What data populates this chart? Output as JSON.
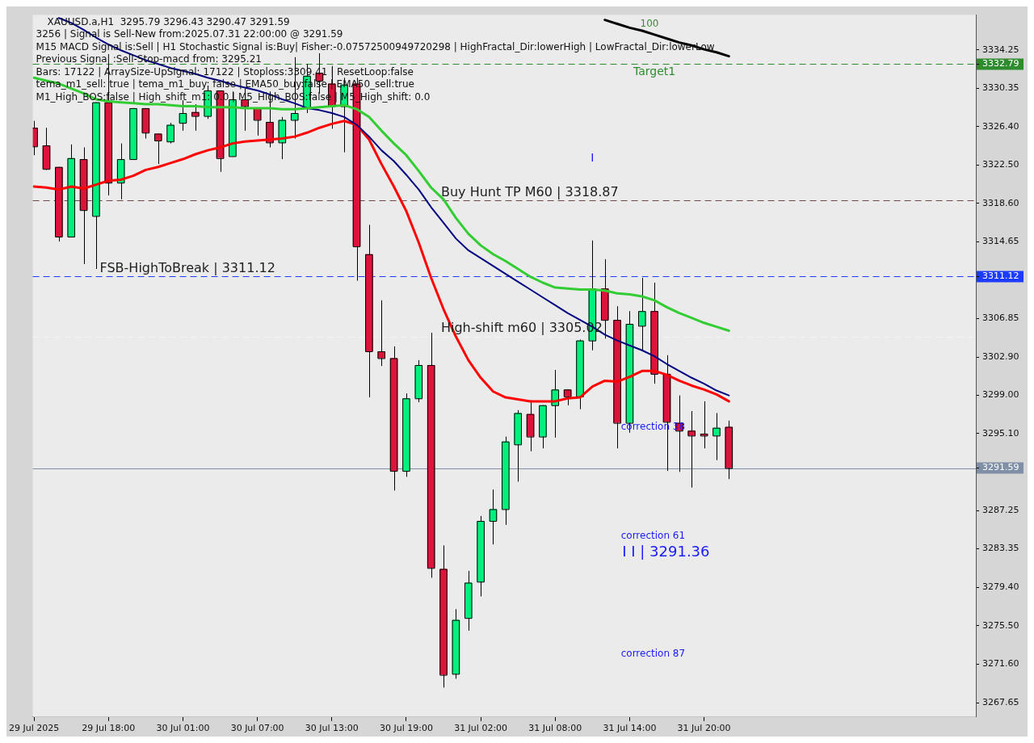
{
  "chart_data": {
    "type": "candlestick",
    "title": "XAUUSD.a,H1  3295.79 3296.43 3290.47 3291.59",
    "categories": [
      "29 Jul 2025",
      null,
      null,
      null,
      null,
      null,
      "29 Jul 18:00",
      null,
      null,
      null,
      null,
      null,
      "30 Jul 01:00",
      null,
      null,
      null,
      null,
      null,
      "30 Jul 07:00",
      null,
      null,
      null,
      null,
      null,
      "30 Jul 13:00",
      null,
      null,
      null,
      null,
      null,
      "30 Jul 19:00",
      null,
      null,
      null,
      null,
      null,
      "31 Jul 02:00",
      null,
      null,
      null,
      null,
      null,
      "31 Jul 08:00",
      null,
      null,
      null,
      null,
      null,
      "31 Jul 14:00",
      null,
      null,
      null,
      null,
      null,
      "31 Jul 20:00",
      null,
      null
    ],
    "ohlc": [
      [
        3326.3,
        3327.0,
        3323.5,
        3324.4
      ],
      [
        3324.5,
        3326.3,
        3322.0,
        3322.1
      ],
      [
        3322.3,
        3322.3,
        3314.7,
        3315.2
      ],
      [
        3315.2,
        3324.6,
        3315.2,
        3323.2
      ],
      [
        3323.1,
        3324.3,
        3312.4,
        3317.9
      ],
      [
        3317.3,
        3328.9,
        3311.9,
        3328.9
      ],
      [
        3328.9,
        3333.0,
        3319.4,
        3320.7
      ],
      [
        3320.7,
        3324.7,
        3319.0,
        3323.1
      ],
      [
        3323.1,
        3328.3,
        3323.1,
        3328.3
      ],
      [
        3328.3,
        3328.3,
        3325.2,
        3325.8
      ],
      [
        3325.7,
        3325.7,
        3322.6,
        3325.0
      ],
      [
        3324.9,
        3326.8,
        3324.7,
        3326.6
      ],
      [
        3326.8,
        3329.1,
        3326.0,
        3327.8
      ],
      [
        3327.9,
        3328.7,
        3326.0,
        3327.5
      ],
      [
        3327.5,
        3330.6,
        3327.2,
        3330.1
      ],
      [
        3330.1,
        3330.1,
        3321.8,
        3323.2
      ],
      [
        3323.4,
        3330.0,
        3323.4,
        3329.2
      ],
      [
        3329.2,
        3330.3,
        3326.0,
        3328.5
      ],
      [
        3328.3,
        3328.3,
        3325.5,
        3327.1
      ],
      [
        3326.9,
        3330.0,
        3324.3,
        3324.8
      ],
      [
        3324.8,
        3327.4,
        3323.1,
        3327.1
      ],
      [
        3327.1,
        3333.5,
        3325.2,
        3327.8
      ],
      [
        3328.3,
        3332.8,
        3327.8,
        3331.6
      ],
      [
        3331.9,
        3333.9,
        3329.8,
        3331.1
      ],
      [
        3330.8,
        3332.6,
        3326.2,
        3328.5
      ],
      [
        3328.5,
        3331.4,
        3323.8,
        3330.7
      ],
      [
        3330.8,
        3331.4,
        3310.7,
        3314.2
      ],
      [
        3313.4,
        3316.4,
        3298.8,
        3303.5
      ],
      [
        3303.5,
        3308.7,
        3302.0,
        3302.8
      ],
      [
        3302.8,
        3304.0,
        3289.3,
        3291.3
      ],
      [
        3291.3,
        3299.2,
        3290.7,
        3298.7
      ],
      [
        3298.7,
        3302.6,
        3298.3,
        3302.1
      ],
      [
        3302.1,
        3305.4,
        3280.4,
        3281.4
      ],
      [
        3281.3,
        3283.7,
        3269.2,
        3270.5
      ],
      [
        3270.6,
        3277.2,
        3270.1,
        3276.1
      ],
      [
        3276.3,
        3281.1,
        3275.0,
        3279.9
      ],
      [
        3280.0,
        3286.7,
        3278.5,
        3286.2
      ],
      [
        3286.2,
        3289.4,
        3283.8,
        3287.4
      ],
      [
        3287.4,
        3294.8,
        3285.8,
        3294.3
      ],
      [
        3294.0,
        3297.5,
        3290.2,
        3297.2
      ],
      [
        3297.1,
        3298.5,
        3293.3,
        3294.8
      ],
      [
        3294.8,
        3298.0,
        3293.6,
        3298.0
      ],
      [
        3298.0,
        3301.6,
        3294.7,
        3299.6
      ],
      [
        3299.6,
        3299.6,
        3298.0,
        3298.9
      ],
      [
        3298.9,
        3304.7,
        3297.6,
        3304.6
      ],
      [
        3304.6,
        3314.8,
        3303.6,
        3309.9
      ],
      [
        3309.9,
        3312.9,
        3304.8,
        3306.7
      ],
      [
        3306.7,
        3308.1,
        3293.6,
        3296.2
      ],
      [
        3296.2,
        3307.6,
        3295.2,
        3306.3
      ],
      [
        3306.1,
        3311.0,
        3303.5,
        3307.6
      ],
      [
        3307.6,
        3310.5,
        3300.2,
        3301.2
      ],
      [
        3301.2,
        3303.1,
        3291.3,
        3296.3
      ],
      [
        3296.2,
        3299.0,
        3291.2,
        3295.4
      ],
      [
        3295.4,
        3297.4,
        3289.6,
        3294.9
      ],
      [
        3295.1,
        3298.4,
        3293.6,
        3294.9
      ],
      [
        3294.9,
        3297.2,
        3292.4,
        3295.7
      ],
      [
        3295.79,
        3296.43,
        3290.47,
        3291.59
      ]
    ],
    "colors": [
      "#dc143c",
      "#dc143c",
      "#dc143c",
      "#00f07e",
      "#dc143c",
      "#00f07e",
      "#dc143c",
      "#00f07e",
      "#00f07e",
      "#dc143c",
      "#dc143c",
      "#00f07e",
      "#00f07e",
      "#dc143c",
      "#00f07e",
      "#dc143c",
      "#00f07e",
      "#dc143c",
      "#dc143c",
      "#dc143c",
      "#00f07e",
      "#00f07e",
      "#00f07e",
      "#dc143c",
      "#dc143c",
      "#00f07e",
      "#dc143c",
      "#dc143c",
      "#dc143c",
      "#dc143c",
      "#00f07e",
      "#00f07e",
      "#dc143c",
      "#dc143c",
      "#00f07e",
      "#00f07e",
      "#00f07e",
      "#00f07e",
      "#00f07e",
      "#00f07e",
      "#dc143c",
      "#00f07e",
      "#00f07e",
      "#dc143c",
      "#00f07e",
      "#00f07e",
      "#dc143c",
      "#dc143c",
      "#00f07e",
      "#00f07e",
      "#dc143c",
      "#dc143c",
      "#dc143c",
      "#dc143c",
      "#dc143c",
      "#00f07e",
      "#dc143c"
    ],
    "series": [
      {
        "type": "line",
        "color": "#32cd32",
        "values": [
          3331.4,
          3331.1,
          3330.8,
          3330.3,
          3329.8,
          3329.2,
          3329.0,
          3328.9,
          3328.8,
          3328.7,
          3328.7,
          3328.6,
          3328.5,
          3328.5,
          3328.4,
          3328.4,
          3328.4,
          3328.3,
          3328.3,
          3328.3,
          3328.2,
          3328.2,
          3328.3,
          3328.4,
          3328.5,
          3328.6,
          3328.2,
          3327.4,
          3326.0,
          3324.7,
          3323.5,
          3321.9,
          3320.2,
          3319.0,
          3317.1,
          3315.5,
          3314.3,
          3313.4,
          3312.7,
          3311.9,
          3311.1,
          3310.5,
          3310.0,
          3309.9,
          3309.8,
          3309.8,
          3309.7,
          3309.4,
          3309.3,
          3309.1,
          3308.7,
          3308.0,
          3307.4,
          3306.9,
          3306.4,
          3306.0,
          3305.6
        ]
      },
      {
        "type": "line",
        "color": "#000080",
        "values": [
          null,
          null,
          3337.5,
          3337.0,
          3336.3,
          3335.5,
          3334.8,
          3334.2,
          3333.7,
          3333.2,
          3332.8,
          3332.4,
          3332.1,
          3331.8,
          3331.4,
          3331.1,
          3330.7,
          3330.4,
          3330.1,
          3329.7,
          3329.2,
          3328.8,
          3328.3,
          3328.1,
          3327.8,
          3327.4,
          3326.6,
          3325.4,
          3324.0,
          3322.9,
          3321.5,
          3320.0,
          3318.2,
          3316.6,
          3315.0,
          3313.8,
          3313.0,
          3312.2,
          3311.4,
          3310.6,
          3309.8,
          3309.0,
          3308.2,
          3307.4,
          3306.7,
          3306.0,
          3305.2,
          3304.6,
          3304.1,
          3303.6,
          3303.0,
          3302.2,
          3301.5,
          3300.8,
          3300.2,
          3299.5,
          3299.0
        ]
      },
      {
        "type": "line",
        "color": "#ff0000",
        "values": [
          3320.3,
          3320.2,
          3320.0,
          3320.3,
          3320.1,
          3320.5,
          3320.9,
          3321.0,
          3321.4,
          3322.0,
          3322.3,
          3322.7,
          3323.1,
          3323.6,
          3324.0,
          3324.3,
          3324.7,
          3324.9,
          3325.0,
          3325.1,
          3325.2,
          3325.4,
          3325.8,
          3326.3,
          3326.7,
          3327.0,
          3326.6,
          3325.1,
          3322.6,
          3320.3,
          3317.8,
          3314.6,
          3311.0,
          3307.8,
          3305.0,
          3302.6,
          3300.8,
          3299.4,
          3298.8,
          3298.6,
          3298.4,
          3298.4,
          3298.4,
          3298.7,
          3298.8,
          3299.9,
          3300.5,
          3300.4,
          3300.9,
          3301.5,
          3301.5,
          3301.1,
          3300.5,
          3300.0,
          3299.6,
          3299.1,
          3298.4
        ]
      },
      {
        "type": "line",
        "color": "#000000",
        "values": [
          null,
          null,
          null,
          null,
          null,
          null,
          null,
          null,
          null,
          null,
          null,
          null,
          null,
          null,
          null,
          null,
          null,
          null,
          null,
          null,
          null,
          null,
          null,
          null,
          null,
          null,
          null,
          null,
          null,
          null,
          null,
          null,
          null,
          null,
          null,
          null,
          null,
          null,
          null,
          null,
          null,
          null,
          null,
          null,
          null,
          null,
          3337.3,
          3336.9,
          3336.5,
          3336.2,
          3335.8,
          3335.4,
          3335.0,
          3334.7,
          3334.3,
          3334.0,
          3333.6
        ]
      }
    ],
    "ylim": [
      3266.2,
      3337.8
    ],
    "yticks": [
      {
        "value": 3267.65,
        "label": "3267.65"
      },
      {
        "value": 3271.6,
        "label": "3271.60"
      },
      {
        "value": 3275.5,
        "label": "3275.50"
      },
      {
        "value": 3279.4,
        "label": "3279.40"
      },
      {
        "value": 3283.35,
        "label": "3283.35"
      },
      {
        "value": 3287.25,
        "label": "3287.25"
      },
      {
        "value": 3291.59,
        "label": "3291.59"
      },
      {
        "value": 3295.1,
        "label": "3295.10"
      },
      {
        "value": 3299.0,
        "label": "3299.00"
      },
      {
        "value": 3302.9,
        "label": "3302.90"
      },
      {
        "value": 3306.85,
        "label": "3306.85"
      },
      {
        "value": 3311.12,
        "label": "3311.12"
      },
      {
        "value": 3314.65,
        "label": "3314.65"
      },
      {
        "value": 3318.6,
        "label": "3318.60"
      },
      {
        "value": 3322.5,
        "label": "3322.50"
      },
      {
        "value": 3326.4,
        "label": "3326.40"
      },
      {
        "value": 3330.35,
        "label": "3330.35"
      },
      {
        "value": 3332.79,
        "label": "3332.79"
      },
      {
        "value": 3334.25,
        "label": "3334.25"
      }
    ],
    "grid": false,
    "legend": false,
    "ref_lines": [
      {
        "axis": "y",
        "value": 3332.79,
        "label": "Target1",
        "color": "#2e8b2e",
        "line_style": "dashed"
      },
      {
        "axis": "y",
        "value": 3318.87,
        "label": "Buy Hunt TP M60 | 3318.87",
        "color": "#6b4a4a",
        "line_style": "dashed"
      },
      {
        "axis": "y",
        "value": 3311.12,
        "label": "FSB-HighToBreak | 3311.12",
        "color": "#1e3cff",
        "line_style": "dashed"
      },
      {
        "axis": "y",
        "value": 3305.02,
        "label": "High-shift m60 | 3305.02",
        "color": "#f4f4f4",
        "line_style": "dashed"
      },
      {
        "axis": "y",
        "value": 3291.59,
        "label": null,
        "color": "#7f8fa6",
        "line_style": "solid"
      }
    ],
    "annotations": [
      "3256 | Signal is Sell-New from:2025.07.31 22:00:00 @ 3291.59",
      "M15 MACD Signal is:Sell | H1 Stochastic Signal is:Buy| Fisher:-0.07572500949720298 | HighFractal_Dir:lowerHigh | LowFractal_Dir:lowerLow",
      "Previous Signal :Sell-Stop-macd from: 3295.21",
      "Bars: 17122 | ArraySize-UpSignal: 17122 | Stoploss:3309.41 | ResetLoop:false",
      "tema_m1_sell: true | tema_m1_buy: false | EMA50_buy:false | EMA50_sell:true",
      "M1_High_BOS:false | High_shift_m1: 0.0 | M5_High_BOS:false | M5_High_shift: 0.0",
      "correction 38",
      "correction 61",
      "correction 87",
      "I I | 3291.36",
      "I",
      "100"
    ]
  }
}
